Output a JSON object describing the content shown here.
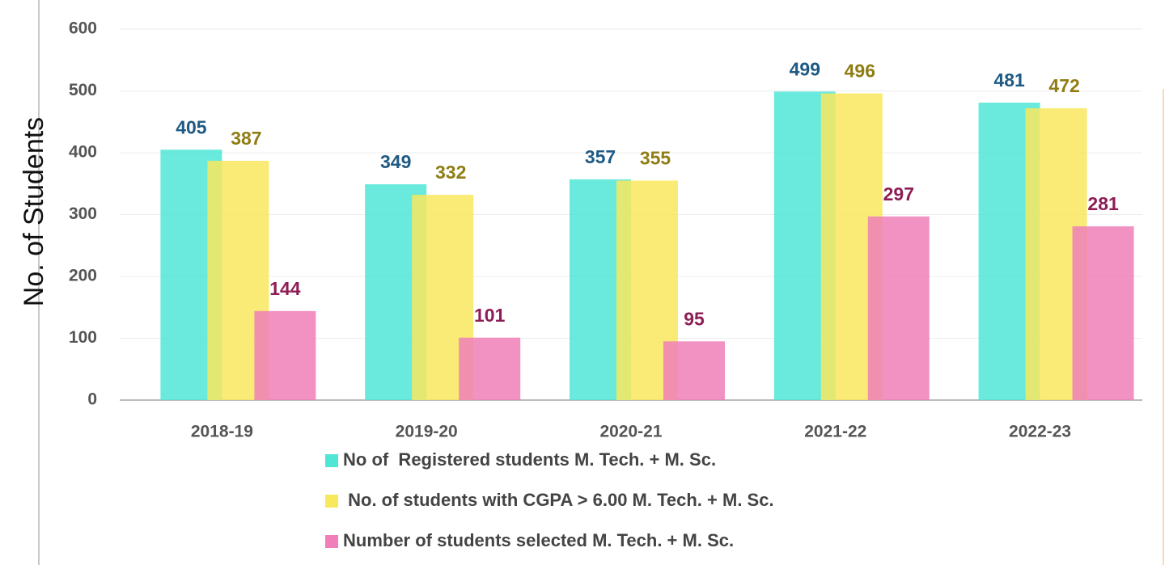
{
  "chart_data": {
    "type": "bar",
    "y_label": "No. of Students",
    "categories": [
      "2018-19",
      "2019-20",
      "2020-21",
      "2021-22",
      "2022-23"
    ],
    "series": [
      {
        "name": "No of  Registered students M. Tech. + M. Sc.",
        "color": "#4fe6d6",
        "label_color": "#1f5a84",
        "values": [
          405,
          349,
          357,
          499,
          481
        ]
      },
      {
        "name": " No. of students with CGPA > 6.00 M. Tech. + M. Sc.",
        "color": "#f8e85e",
        "label_color": "#8f7d14",
        "values": [
          387,
          332,
          355,
          496,
          472
        ]
      },
      {
        "name": "Number of students selected M. Tech. + M. Sc.",
        "color": "#f07fb9",
        "label_color": "#8e1d55",
        "values": [
          144,
          101,
          95,
          297,
          281
        ]
      }
    ],
    "ylim": [
      0,
      600
    ],
    "yticks": [
      0,
      100,
      200,
      300,
      400,
      500,
      600
    ],
    "grid": true,
    "legend": "bottom"
  }
}
